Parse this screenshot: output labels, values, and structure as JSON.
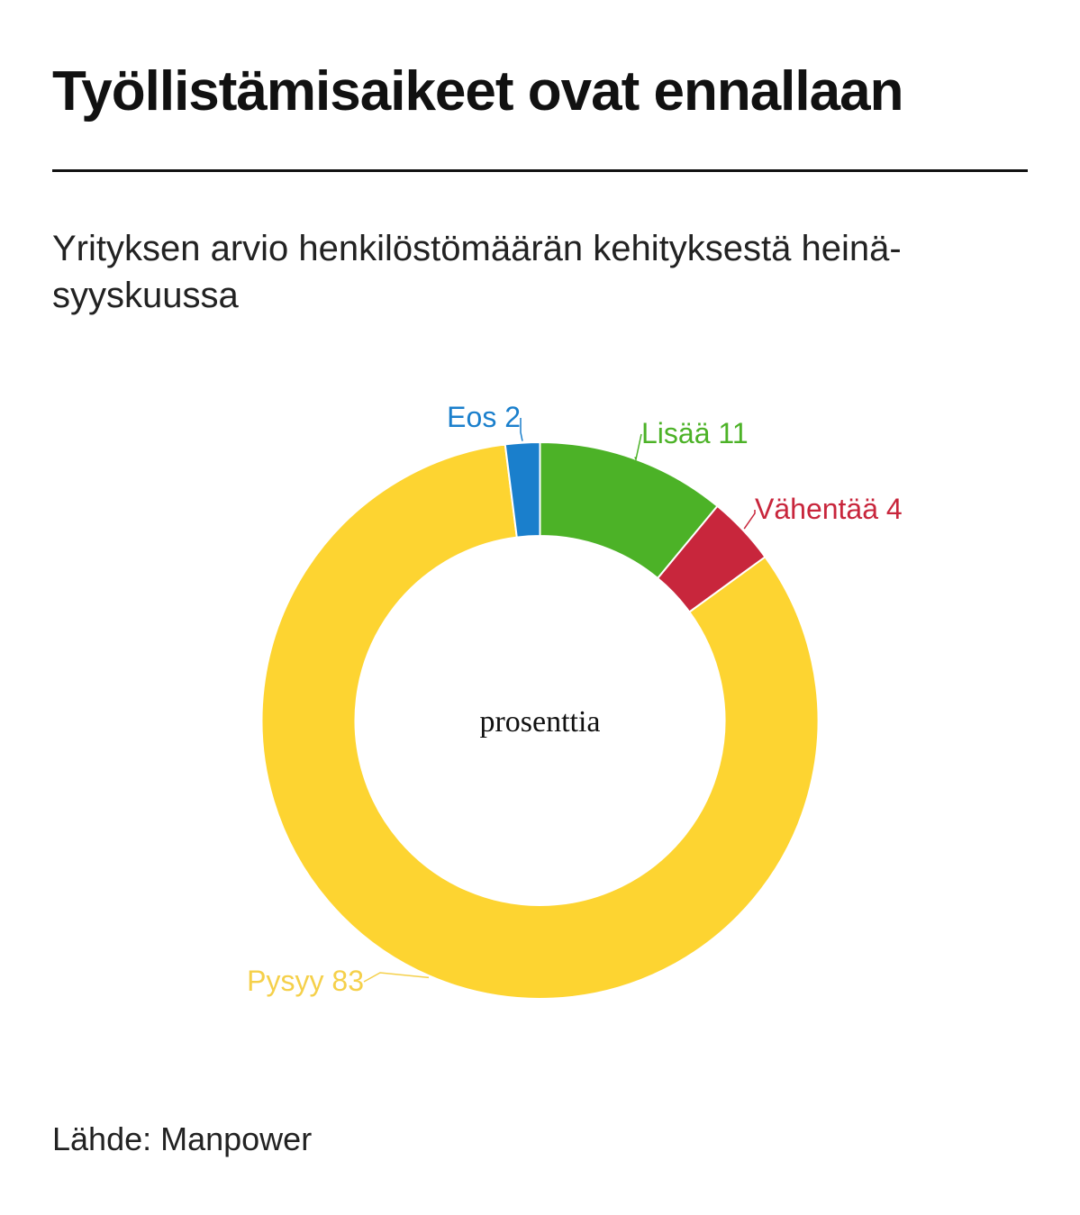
{
  "header": {
    "title": "Työllistämisaikeet ovat ennallaan",
    "subtitle": "Yrityksen arvio henkilöstömäärän kehityksestä heinä-syyskuussa"
  },
  "chart_data": {
    "type": "pie",
    "donut": true,
    "title": "Työllistämisaikeet ovat ennallaan",
    "subtitle": "Yrityksen arvio henkilöstömäärän kehityksestä heinä-syyskuussa",
    "center_label": "prosenttia",
    "unit": "prosenttia",
    "slices": [
      {
        "label": "Lisää 11",
        "name": "Lisää",
        "value": 11,
        "color": "#4cb227"
      },
      {
        "label": "Vähentää 4",
        "name": "Vähentää",
        "value": 4,
        "color": "#c8263c"
      },
      {
        "label": "Pysyy 83",
        "name": "Pysyy",
        "value": 83,
        "color": "#fdd431"
      },
      {
        "label": "Eos 2",
        "name": "Eos",
        "value": 2,
        "color": "#1a7fcc"
      }
    ],
    "label_color_pysyy": "#f5d04a"
  },
  "footer": {
    "source": "Lähde: Manpower"
  }
}
